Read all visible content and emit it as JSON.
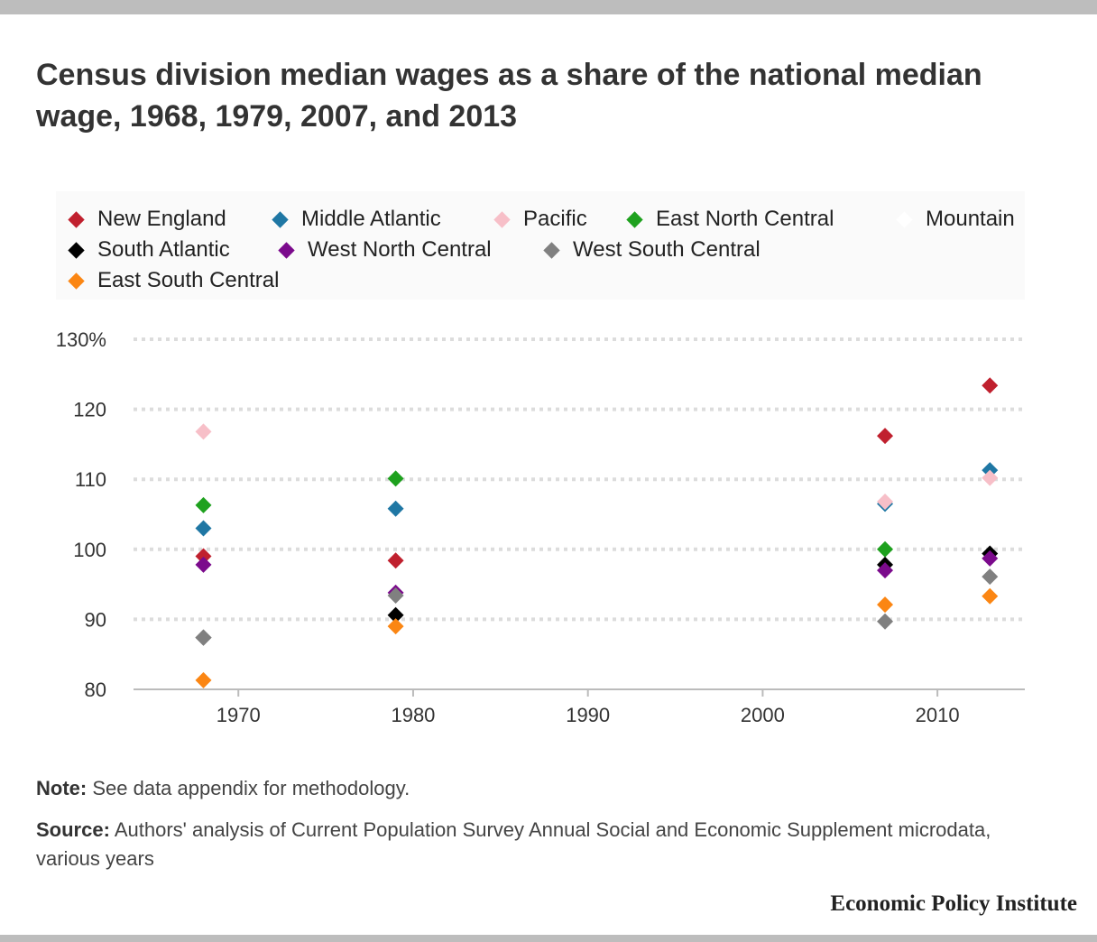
{
  "title": "Census division median wages as a share of the national median wage, 1968, 1979, 2007, and 2013",
  "note": {
    "label": "Note:",
    "text": "See data appendix for methodology."
  },
  "source": {
    "label": "Source:",
    "text": "Authors' analysis of Current Population Survey Annual Social and Economic Supplement microdata, various years"
  },
  "brand": "Economic Policy Institute",
  "chart_data": {
    "type": "scatter",
    "title": "Census division median wages as a share of the national median wage, 1968, 1979, 2007, and 2013",
    "xlabel": "",
    "ylabel": "",
    "xlim": [
      1964,
      2015
    ],
    "ylim": [
      80,
      130
    ],
    "x_ticks": [
      1970,
      1980,
      1990,
      2000,
      2010
    ],
    "y_ticks": [
      {
        "value": 80,
        "label": "80"
      },
      {
        "value": 90,
        "label": "90"
      },
      {
        "value": 100,
        "label": "100"
      },
      {
        "value": 110,
        "label": "110"
      },
      {
        "value": 120,
        "label": "120"
      },
      {
        "value": 130,
        "label": "130%"
      }
    ],
    "grid": "horizontal dotted",
    "legend_placement": "top",
    "marker": "diamond",
    "x": [
      1968,
      1979,
      2007,
      2013
    ],
    "series": [
      {
        "name": "New England",
        "color": "#c0202e",
        "values": [
          99.0,
          98.4,
          116.2,
          123.4
        ]
      },
      {
        "name": "Middle Atlantic",
        "color": "#1f77a4",
        "values": [
          103.0,
          105.8,
          106.5,
          111.3
        ]
      },
      {
        "name": "Pacific",
        "color": "#f7bfc8",
        "values": [
          116.8,
          null,
          106.8,
          110.2
        ]
      },
      {
        "name": "East North Central",
        "color": "#1ea11e",
        "values": [
          106.3,
          110.1,
          100.0,
          null
        ]
      },
      {
        "name": "Mountain",
        "color": "#ffffff",
        "values": [
          null,
          null,
          null,
          null
        ]
      },
      {
        "name": "South Atlantic",
        "color": "#000000",
        "values": [
          87.4,
          90.6,
          97.8,
          99.4
        ]
      },
      {
        "name": "West North Central",
        "color": "#7b0a8c",
        "values": [
          97.8,
          93.8,
          97.0,
          98.7
        ]
      },
      {
        "name": "West South Central",
        "color": "#808080",
        "values": [
          87.4,
          93.4,
          89.7,
          96.1
        ]
      },
      {
        "name": "East South Central",
        "color": "#fb8613",
        "values": [
          81.3,
          89.0,
          92.1,
          93.3
        ]
      }
    ]
  }
}
